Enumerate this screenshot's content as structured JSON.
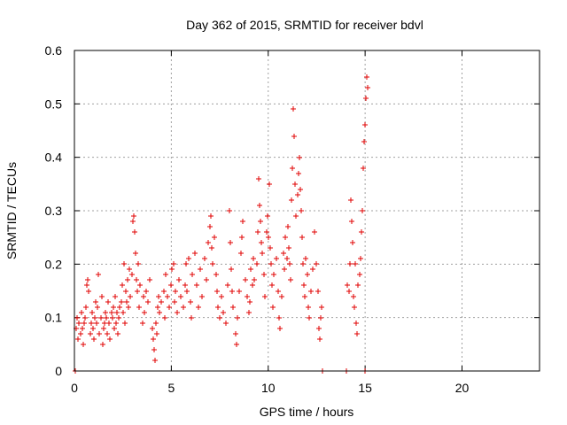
{
  "chart_data": {
    "type": "scatter",
    "title": "Day 362 of 2015, SRMTID for receiver bdvl",
    "xlabel": "GPS time / hours",
    "ylabel": "SRMTID / TECUs",
    "xlim": [
      0,
      24
    ],
    "ylim": [
      0,
      0.6
    ],
    "x_ticks": [
      0,
      5,
      10,
      15,
      20
    ],
    "y_ticks": [
      0,
      0.1,
      0.2,
      0.3,
      0.4,
      0.5,
      0.6
    ],
    "x_tick_labels": [
      "0",
      "5",
      "10",
      "15",
      "20"
    ],
    "y_tick_labels": [
      "0",
      "0.1",
      "0.2",
      "0.3",
      "0.4",
      "0.5",
      "0.6"
    ],
    "grid": true,
    "marker": "+",
    "color": "#e00000",
    "series": [
      {
        "name": "SRMTID",
        "points": [
          [
            0.05,
            0.0
          ],
          [
            0.1,
            0.08
          ],
          [
            0.15,
            0.1
          ],
          [
            0.2,
            0.06
          ],
          [
            0.25,
            0.09
          ],
          [
            0.3,
            0.07
          ],
          [
            0.35,
            0.11
          ],
          [
            0.4,
            0.08
          ],
          [
            0.45,
            0.05
          ],
          [
            0.5,
            0.09
          ],
          [
            0.55,
            0.1
          ],
          [
            0.6,
            0.12
          ],
          [
            0.65,
            0.16
          ],
          [
            0.7,
            0.17
          ],
          [
            0.75,
            0.15
          ],
          [
            0.8,
            0.07
          ],
          [
            0.85,
            0.09
          ],
          [
            0.9,
            0.11
          ],
          [
            0.95,
            0.08
          ],
          [
            1.0,
            0.06
          ],
          [
            1.05,
            0.1
          ],
          [
            1.1,
            0.13
          ],
          [
            1.15,
            0.09
          ],
          [
            1.2,
            0.12
          ],
          [
            1.25,
            0.18
          ],
          [
            1.3,
            0.07
          ],
          [
            1.35,
            0.1
          ],
          [
            1.4,
            0.14
          ],
          [
            1.45,
            0.05
          ],
          [
            1.5,
            0.08
          ],
          [
            1.55,
            0.09
          ],
          [
            1.6,
            0.11
          ],
          [
            1.65,
            0.1
          ],
          [
            1.7,
            0.07
          ],
          [
            1.75,
            0.13
          ],
          [
            1.8,
            0.09
          ],
          [
            1.85,
            0.06
          ],
          [
            1.9,
            0.11
          ],
          [
            1.95,
            0.1
          ],
          [
            2.0,
            0.12
          ],
          [
            2.05,
            0.08
          ],
          [
            2.1,
            0.14
          ],
          [
            2.15,
            0.09
          ],
          [
            2.2,
            0.11
          ],
          [
            2.25,
            0.07
          ],
          [
            2.3,
            0.1
          ],
          [
            2.35,
            0.12
          ],
          [
            2.4,
            0.13
          ],
          [
            2.45,
            0.16
          ],
          [
            2.5,
            0.11
          ],
          [
            2.55,
            0.2
          ],
          [
            2.6,
            0.09
          ],
          [
            2.65,
            0.15
          ],
          [
            2.7,
            0.13
          ],
          [
            2.75,
            0.17
          ],
          [
            2.8,
            0.12
          ],
          [
            2.85,
            0.19
          ],
          [
            2.9,
            0.14
          ],
          [
            2.95,
            0.18
          ],
          [
            3.0,
            0.28
          ],
          [
            3.05,
            0.29
          ],
          [
            3.1,
            0.26
          ],
          [
            3.15,
            0.22
          ],
          [
            3.2,
            0.17
          ],
          [
            3.25,
            0.15
          ],
          [
            3.3,
            0.2
          ],
          [
            3.35,
            0.12
          ],
          [
            3.4,
            0.16
          ],
          [
            3.5,
            0.09
          ],
          [
            3.55,
            0.14
          ],
          [
            3.6,
            0.11
          ],
          [
            3.7,
            0.15
          ],
          [
            3.8,
            0.13
          ],
          [
            3.9,
            0.17
          ],
          [
            4.0,
            0.08
          ],
          [
            4.05,
            0.06
          ],
          [
            4.1,
            0.04
          ],
          [
            4.15,
            0.02
          ],
          [
            4.2,
            0.09
          ],
          [
            4.25,
            0.07
          ],
          [
            4.3,
            0.12
          ],
          [
            4.35,
            0.14
          ],
          [
            4.4,
            0.11
          ],
          [
            4.5,
            0.13
          ],
          [
            4.6,
            0.15
          ],
          [
            4.65,
            0.1
          ],
          [
            4.7,
            0.18
          ],
          [
            4.8,
            0.14
          ],
          [
            4.9,
            0.12
          ],
          [
            5.0,
            0.16
          ],
          [
            5.05,
            0.19
          ],
          [
            5.1,
            0.2
          ],
          [
            5.15,
            0.13
          ],
          [
            5.2,
            0.15
          ],
          [
            5.3,
            0.11
          ],
          [
            5.4,
            0.17
          ],
          [
            5.5,
            0.14
          ],
          [
            5.6,
            0.12
          ],
          [
            5.7,
            0.16
          ],
          [
            5.75,
            0.2
          ],
          [
            5.8,
            0.15
          ],
          [
            5.9,
            0.21
          ],
          [
            6.0,
            0.13
          ],
          [
            6.05,
            0.1
          ],
          [
            6.1,
            0.18
          ],
          [
            6.2,
            0.22
          ],
          [
            6.3,
            0.16
          ],
          [
            6.4,
            0.12
          ],
          [
            6.5,
            0.19
          ],
          [
            6.6,
            0.14
          ],
          [
            6.7,
            0.21
          ],
          [
            6.8,
            0.17
          ],
          [
            6.9,
            0.24
          ],
          [
            7.0,
            0.27
          ],
          [
            7.05,
            0.29
          ],
          [
            7.1,
            0.23
          ],
          [
            7.15,
            0.2
          ],
          [
            7.2,
            0.25
          ],
          [
            7.3,
            0.18
          ],
          [
            7.35,
            0.15
          ],
          [
            7.4,
            0.12
          ],
          [
            7.5,
            0.1
          ],
          [
            7.6,
            0.14
          ],
          [
            7.7,
            0.11
          ],
          [
            7.8,
            0.09
          ],
          [
            7.9,
            0.16
          ],
          [
            8.0,
            0.3
          ],
          [
            8.05,
            0.24
          ],
          [
            8.1,
            0.19
          ],
          [
            8.15,
            0.15
          ],
          [
            8.2,
            0.12
          ],
          [
            8.3,
            0.07
          ],
          [
            8.35,
            0.05
          ],
          [
            8.4,
            0.1
          ],
          [
            8.5,
            0.15
          ],
          [
            8.6,
            0.22
          ],
          [
            8.65,
            0.25
          ],
          [
            8.7,
            0.28
          ],
          [
            8.8,
            0.17
          ],
          [
            8.9,
            0.14
          ],
          [
            9.0,
            0.11
          ],
          [
            9.05,
            0.13
          ],
          [
            9.1,
            0.19
          ],
          [
            9.2,
            0.16
          ],
          [
            9.25,
            0.21
          ],
          [
            9.3,
            0.17
          ],
          [
            9.4,
            0.2
          ],
          [
            9.45,
            0.26
          ],
          [
            9.5,
            0.36
          ],
          [
            9.55,
            0.31
          ],
          [
            9.6,
            0.28
          ],
          [
            9.65,
            0.24
          ],
          [
            9.7,
            0.22
          ],
          [
            9.8,
            0.18
          ],
          [
            9.85,
            0.14
          ],
          [
            9.9,
            0.26
          ],
          [
            9.95,
            0.29
          ],
          [
            10.0,
            0.25
          ],
          [
            10.05,
            0.35
          ],
          [
            10.1,
            0.23
          ],
          [
            10.15,
            0.2
          ],
          [
            10.2,
            0.16
          ],
          [
            10.25,
            0.12
          ],
          [
            10.3,
            0.18
          ],
          [
            10.4,
            0.21
          ],
          [
            10.5,
            0.15
          ],
          [
            10.55,
            0.1
          ],
          [
            10.6,
            0.08
          ],
          [
            10.7,
            0.14
          ],
          [
            10.8,
            0.22
          ],
          [
            10.85,
            0.19
          ],
          [
            10.9,
            0.25
          ],
          [
            10.95,
            0.21
          ],
          [
            11.0,
            0.27
          ],
          [
            11.05,
            0.23
          ],
          [
            11.1,
            0.2
          ],
          [
            11.15,
            0.17
          ],
          [
            11.2,
            0.32
          ],
          [
            11.25,
            0.38
          ],
          [
            11.3,
            0.49
          ],
          [
            11.35,
            0.44
          ],
          [
            11.4,
            0.35
          ],
          [
            11.45,
            0.29
          ],
          [
            11.5,
            0.33
          ],
          [
            11.55,
            0.37
          ],
          [
            11.6,
            0.4
          ],
          [
            11.65,
            0.34
          ],
          [
            11.7,
            0.3
          ],
          [
            11.75,
            0.25
          ],
          [
            11.8,
            0.2
          ],
          [
            11.85,
            0.16
          ],
          [
            11.9,
            0.14
          ],
          [
            11.95,
            0.21
          ],
          [
            12.0,
            0.18
          ],
          [
            12.05,
            0.12
          ],
          [
            12.1,
            0.1
          ],
          [
            12.2,
            0.15
          ],
          [
            12.3,
            0.19
          ],
          [
            12.4,
            0.26
          ],
          [
            12.5,
            0.2
          ],
          [
            12.55,
            0.15
          ],
          [
            12.6,
            0.08
          ],
          [
            12.65,
            0.06
          ],
          [
            12.7,
            0.1
          ],
          [
            12.75,
            0.12
          ],
          [
            12.8,
            0.0
          ],
          [
            14.05,
            0.0
          ],
          [
            14.1,
            0.16
          ],
          [
            14.15,
            0.15
          ],
          [
            14.2,
            0.2
          ],
          [
            14.25,
            0.32
          ],
          [
            14.3,
            0.28
          ],
          [
            14.35,
            0.24
          ],
          [
            14.4,
            0.14
          ],
          [
            14.45,
            0.12
          ],
          [
            14.5,
            0.2
          ],
          [
            14.55,
            0.09
          ],
          [
            14.6,
            0.07
          ],
          [
            14.65,
            0.16
          ],
          [
            14.7,
            0.18
          ],
          [
            14.75,
            0.21
          ],
          [
            14.8,
            0.26
          ],
          [
            14.85,
            0.3
          ],
          [
            14.9,
            0.38
          ],
          [
            14.95,
            0.43
          ],
          [
            15.0,
            0.46
          ],
          [
            15.05,
            0.51
          ],
          [
            15.1,
            0.55
          ],
          [
            15.15,
            0.53
          ],
          [
            15.0,
            0.0
          ]
        ]
      }
    ]
  }
}
